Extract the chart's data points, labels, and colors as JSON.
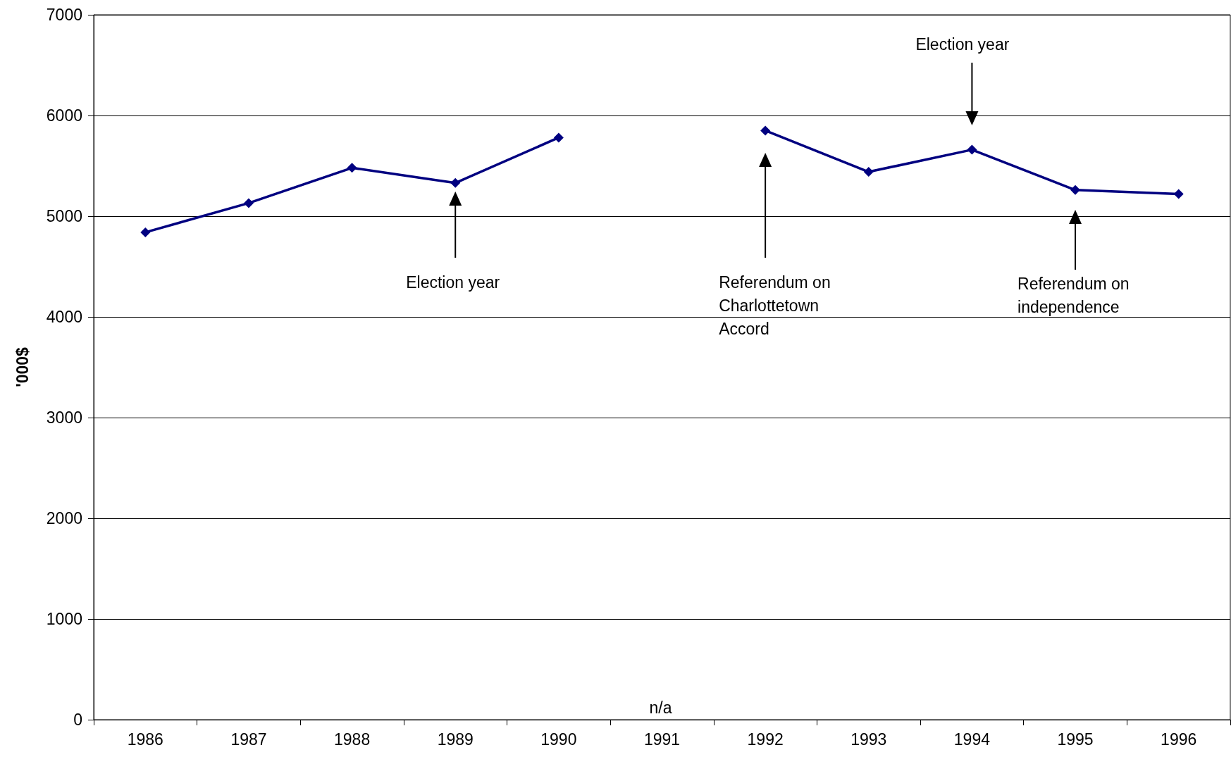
{
  "chart_data": {
    "type": "line",
    "ylabel": "'000$",
    "categories": [
      "1986",
      "1987",
      "1988",
      "1989",
      "1990",
      "1991",
      "1992",
      "1993",
      "1994",
      "1995",
      "1996"
    ],
    "series": [
      {
        "color": "#000080",
        "values": [
          4840,
          5130,
          5480,
          5330,
          5780,
          null,
          5850,
          5440,
          5660,
          5260,
          5220
        ]
      }
    ],
    "ylim": [
      0,
      7000
    ],
    "yticks": [
      0,
      1000,
      2000,
      3000,
      4000,
      5000,
      6000,
      7000
    ],
    "grid": "y",
    "marker": "diamond",
    "line_style": "solid",
    "annotations": [
      "Election year",
      "Referendum on\nCharlottetown\nAccord",
      "Election year",
      "Referendum on\nindependence",
      "n/a"
    ]
  }
}
